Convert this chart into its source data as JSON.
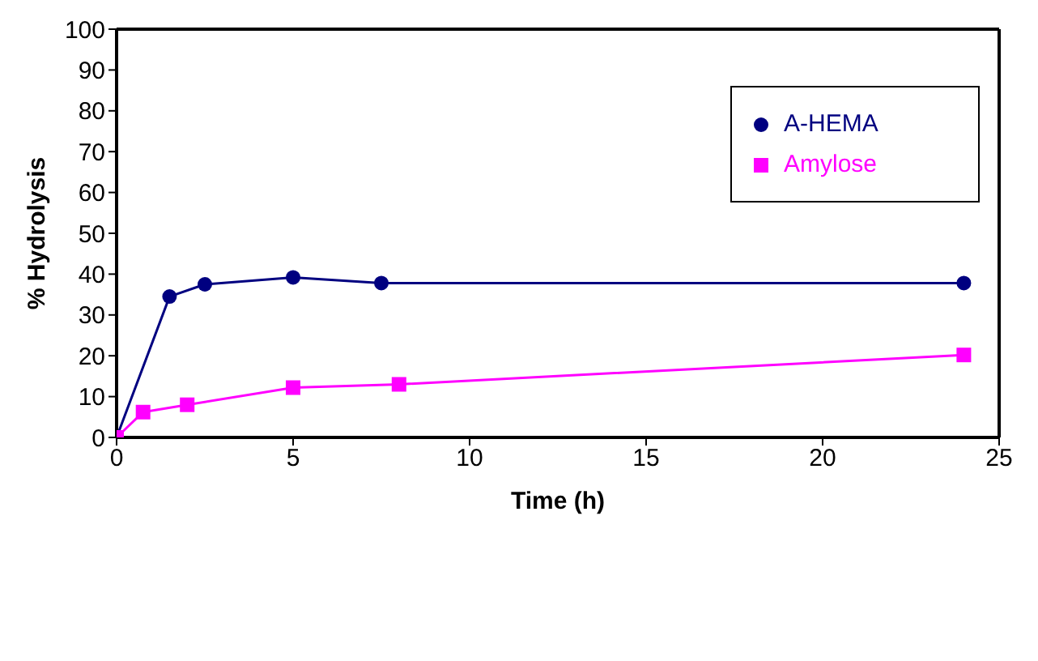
{
  "chart_data": {
    "type": "line",
    "xlabel": "Time (h)",
    "ylabel": "% Hydrolysis",
    "xlim": [
      0,
      25
    ],
    "xticks": [
      0,
      5,
      10,
      15,
      20,
      25
    ],
    "ylim": [
      0,
      100
    ],
    "yticks": [
      0,
      10,
      20,
      30,
      40,
      50,
      60,
      70,
      80,
      90,
      100
    ],
    "grid": false,
    "legend": "top right",
    "line_style": "solid",
    "series": [
      {
        "name": "A-HEMA",
        "color": "#000080",
        "marker": "circle",
        "x": [
          0,
          1.5,
          2.5,
          5,
          7.5,
          24
        ],
        "values": [
          0,
          34.5,
          37.5,
          39.2,
          37.8,
          37.8
        ]
      },
      {
        "name": "Amylose",
        "color": "#ff00ff",
        "marker": "square",
        "x": [
          0,
          0.75,
          2,
          5,
          8,
          24
        ],
        "values": [
          0,
          6.2,
          8,
          12.2,
          13,
          20.2
        ]
      }
    ]
  }
}
